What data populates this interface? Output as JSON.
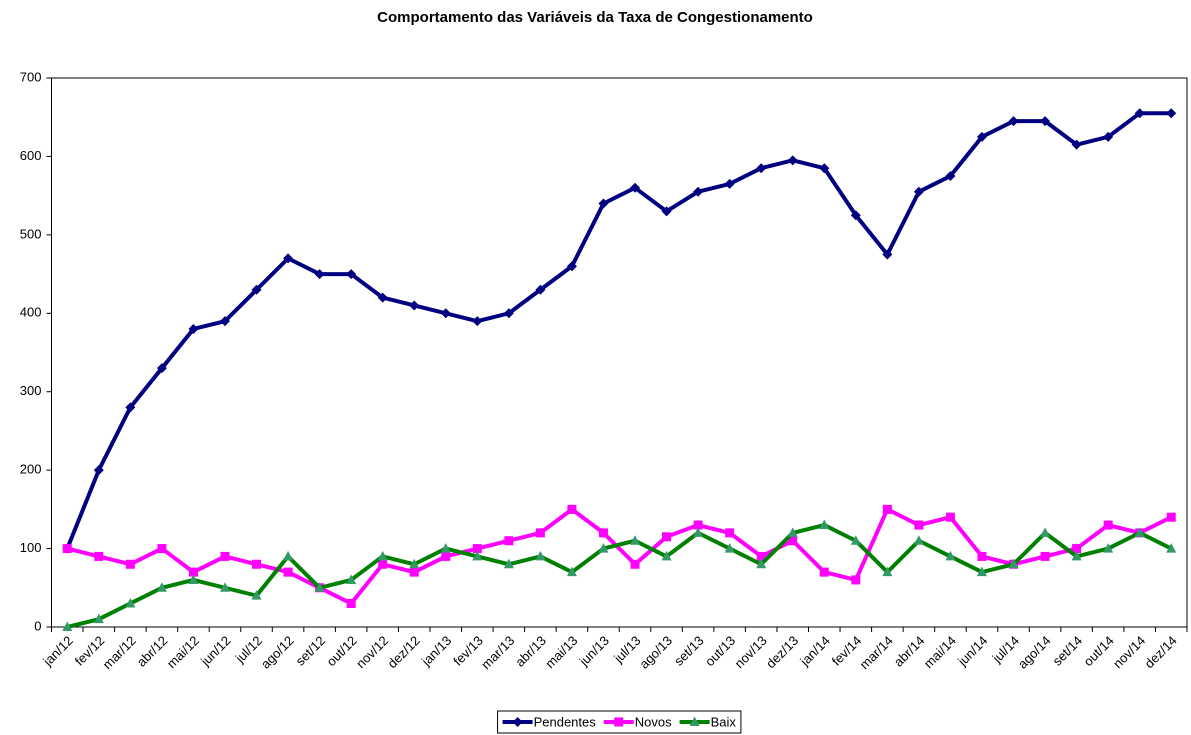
{
  "chart_data": {
    "type": "line",
    "title": "Comportamento das Variáveis da Taxa de Congestionamento",
    "categories": [
      "jan/12",
      "fev/12",
      "mar/12",
      "abr/12",
      "mai/12",
      "jun/12",
      "jul/12",
      "ago/12",
      "set/12",
      "out/12",
      "nov/12",
      "dez/12",
      "jan/13",
      "fev/13",
      "mar/13",
      "abr/13",
      "mai/13",
      "jun/13",
      "jul/13",
      "ago/13",
      "set/13",
      "out/13",
      "nov/13",
      "dez/13",
      "jan/14",
      "fev/14",
      "mar/14",
      "abr/14",
      "mai/14",
      "jun/14",
      "jul/14",
      "ago/14",
      "set/14",
      "out/14",
      "nov/14",
      "dez/14"
    ],
    "series": [
      {
        "name": "Pendentes",
        "color": "#000080",
        "marker": "diamond",
        "values": [
          100,
          200,
          280,
          330,
          380,
          390,
          430,
          470,
          450,
          450,
          420,
          410,
          400,
          390,
          400,
          430,
          460,
          540,
          560,
          530,
          555,
          565,
          585,
          595,
          585,
          525,
          475,
          555,
          575,
          625,
          645,
          645,
          615,
          625,
          655,
          655
        ]
      },
      {
        "name": "Novos",
        "color": "#ff00ff",
        "marker": "square",
        "values": [
          100,
          90,
          80,
          100,
          70,
          90,
          80,
          70,
          50,
          30,
          80,
          70,
          90,
          100,
          110,
          120,
          150,
          120,
          80,
          115,
          130,
          120,
          90,
          110,
          70,
          60,
          150,
          130,
          140,
          90,
          80,
          90,
          100,
          130,
          120,
          140
        ]
      },
      {
        "name": "Baix",
        "color": "#008000",
        "marker": "triangle",
        "marker_color": "#339966",
        "values": [
          0,
          10,
          30,
          50,
          60,
          50,
          40,
          90,
          50,
          60,
          90,
          80,
          100,
          90,
          80,
          90,
          70,
          100,
          110,
          90,
          120,
          100,
          80,
          120,
          130,
          110,
          70,
          110,
          90,
          70,
          80,
          120,
          90,
          100,
          120,
          100
        ]
      }
    ],
    "ylim": [
      0,
      700
    ],
    "yticks": [
      0,
      100,
      200,
      300,
      400,
      500,
      600,
      700
    ],
    "grid": false,
    "legend": "bottom"
  }
}
